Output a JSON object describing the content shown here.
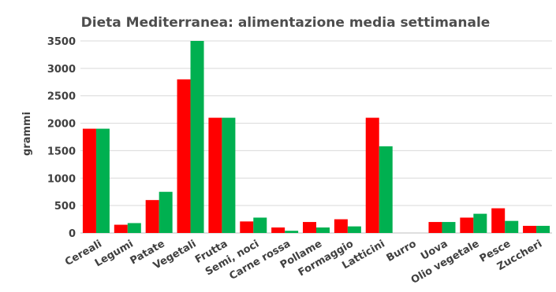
{
  "chart_data": {
    "type": "bar",
    "title": "Dieta Mediterranea: alimentazione media settimanale",
    "ylabel": "grammi",
    "xlabel": "",
    "ylim": [
      0,
      3500
    ],
    "yticks": [
      0,
      500,
      1000,
      1500,
      2000,
      2500,
      3000,
      3500
    ],
    "grid": true,
    "legend": "none",
    "categories": [
      "Cereali",
      "Legumi",
      "Patate",
      "Vegetali",
      "Frutta",
      "Semi, noci",
      "Carne rossa",
      "Pollame",
      "Formaggio",
      "Latticini",
      "Burro",
      "Uova",
      "Olio vegetale",
      "Pesce",
      "Zuccheri"
    ],
    "series": [
      {
        "color": "#ff0000",
        "values": [
          1900,
          150,
          600,
          2800,
          2100,
          210,
          100,
          200,
          250,
          2100,
          0,
          200,
          280,
          450,
          130
        ]
      },
      {
        "color": "#00b050",
        "values": [
          1900,
          180,
          750,
          3500,
          2100,
          280,
          40,
          100,
          120,
          1580,
          0,
          200,
          350,
          220,
          130
        ]
      }
    ]
  }
}
